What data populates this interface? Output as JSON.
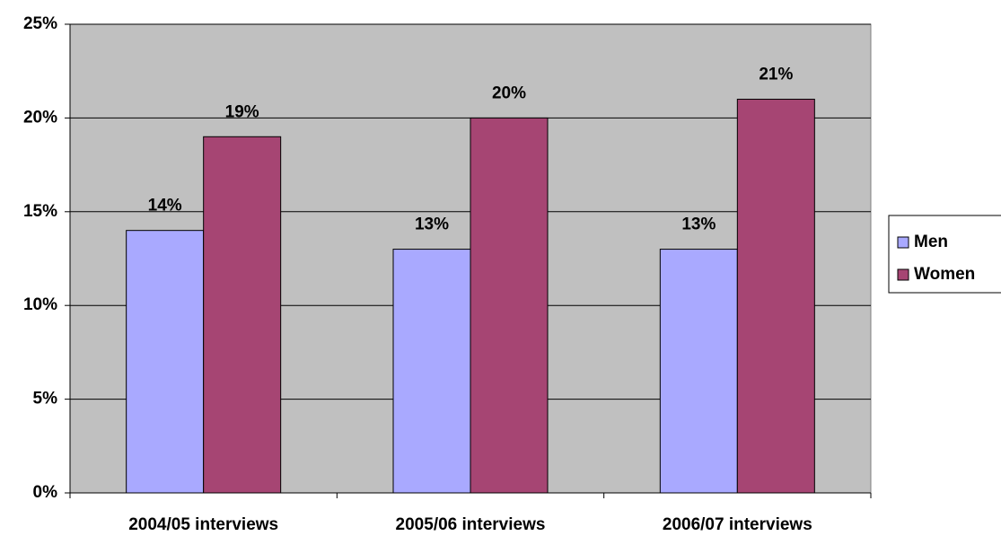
{
  "chart_data": {
    "type": "bar",
    "categories": [
      "2004/05 interviews",
      "2005/06 interviews",
      "2006/07 interviews"
    ],
    "series": [
      {
        "name": "Men",
        "color": "#a9a9ff",
        "values": [
          14,
          13,
          13
        ],
        "value_labels": [
          "14%",
          "13%",
          "13%"
        ]
      },
      {
        "name": "Women",
        "color": "#a64573",
        "values": [
          19,
          20,
          21
        ],
        "value_labels": [
          "19%",
          "20%",
          "21%"
        ]
      }
    ],
    "ylim": [
      0,
      25
    ],
    "yticks": [
      {
        "value": 0,
        "label": "0%"
      },
      {
        "value": 5,
        "label": "5%"
      },
      {
        "value": 10,
        "label": "10%"
      },
      {
        "value": 15,
        "label": "15%"
      },
      {
        "value": 20,
        "label": "20%"
      },
      {
        "value": 25,
        "label": "25%"
      }
    ],
    "grid": true,
    "legend": "right"
  }
}
